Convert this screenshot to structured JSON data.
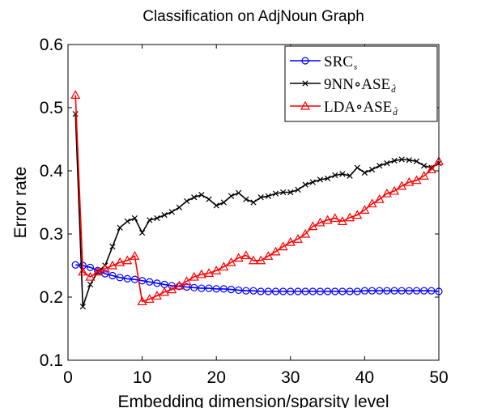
{
  "chart_data": {
    "type": "line",
    "title": "Classification on AdjNoun Graph",
    "xlabel": "Embedding dimension/sparsity level",
    "ylabel": "Error rate",
    "xlim": [
      0,
      50
    ],
    "ylim": [
      0.1,
      0.6
    ],
    "xticks": [
      0,
      10,
      20,
      30,
      40,
      50
    ],
    "xtick_labels": [
      "0",
      "10",
      "20",
      "30",
      "40",
      "50"
    ],
    "yticks": [
      0.1,
      0.2,
      0.3,
      0.4,
      0.5,
      0.6
    ],
    "ytick_labels": [
      "0.1",
      "0.2",
      "0.3",
      "0.4",
      "0.5",
      "0.6"
    ],
    "grid": false,
    "legend_position": "top-right",
    "series": [
      {
        "name": "SRC",
        "name_sub": "s",
        "color": "#0000ff",
        "marker": "circle",
        "x": [
          1,
          2,
          3,
          4,
          5,
          6,
          7,
          8,
          9,
          10,
          11,
          12,
          13,
          14,
          15,
          16,
          17,
          18,
          19,
          20,
          21,
          22,
          23,
          24,
          25,
          26,
          27,
          28,
          29,
          30,
          31,
          32,
          33,
          34,
          35,
          36,
          37,
          38,
          39,
          40,
          41,
          42,
          43,
          44,
          45,
          46,
          47,
          48,
          49,
          50
        ],
        "y": [
          0.251,
          0.25,
          0.247,
          0.242,
          0.237,
          0.234,
          0.231,
          0.229,
          0.228,
          0.226,
          0.224,
          0.222,
          0.22,
          0.218,
          0.217,
          0.216,
          0.215,
          0.214,
          0.214,
          0.213,
          0.213,
          0.212,
          0.211,
          0.21,
          0.21,
          0.209,
          0.209,
          0.209,
          0.209,
          0.209,
          0.209,
          0.209,
          0.209,
          0.209,
          0.209,
          0.209,
          0.209,
          0.209,
          0.209,
          0.21,
          0.21,
          0.21,
          0.21,
          0.21,
          0.21,
          0.21,
          0.21,
          0.21,
          0.21,
          0.209
        ]
      },
      {
        "name": "9NN∘ASE",
        "name_sub": "d̂",
        "color": "#000000",
        "marker": "x",
        "x": [
          1,
          2,
          3,
          4,
          5,
          6,
          7,
          8,
          9,
          10,
          11,
          12,
          13,
          14,
          15,
          16,
          17,
          18,
          19,
          20,
          21,
          22,
          23,
          24,
          25,
          26,
          27,
          28,
          29,
          30,
          31,
          32,
          33,
          34,
          35,
          36,
          37,
          38,
          39,
          40,
          41,
          42,
          43,
          44,
          45,
          46,
          47,
          48,
          49,
          50
        ],
        "y": [
          0.49,
          0.185,
          0.22,
          0.24,
          0.25,
          0.28,
          0.31,
          0.32,
          0.325,
          0.302,
          0.322,
          0.325,
          0.33,
          0.335,
          0.342,
          0.352,
          0.358,
          0.362,
          0.355,
          0.345,
          0.35,
          0.36,
          0.365,
          0.355,
          0.35,
          0.358,
          0.36,
          0.364,
          0.366,
          0.366,
          0.37,
          0.378,
          0.382,
          0.386,
          0.388,
          0.393,
          0.395,
          0.392,
          0.405,
          0.397,
          0.402,
          0.408,
          0.412,
          0.416,
          0.418,
          0.417,
          0.415,
          0.408,
          0.405,
          0.412
        ]
      },
      {
        "name": "LDA∘ASE",
        "name_sub": "d̂",
        "color": "#ff0000",
        "marker": "triangle",
        "x": [
          1,
          2,
          3,
          4,
          5,
          6,
          7,
          8,
          9,
          10,
          11,
          12,
          13,
          14,
          15,
          16,
          17,
          18,
          19,
          20,
          21,
          22,
          23,
          24,
          25,
          26,
          27,
          28,
          29,
          30,
          31,
          32,
          33,
          34,
          35,
          36,
          37,
          38,
          39,
          40,
          41,
          42,
          43,
          44,
          45,
          46,
          47,
          48,
          49,
          50
        ],
        "y": [
          0.52,
          0.24,
          0.232,
          0.24,
          0.245,
          0.25,
          0.255,
          0.258,
          0.265,
          0.193,
          0.197,
          0.202,
          0.208,
          0.212,
          0.218,
          0.225,
          0.232,
          0.236,
          0.238,
          0.242,
          0.248,
          0.255,
          0.262,
          0.266,
          0.258,
          0.258,
          0.265,
          0.272,
          0.28,
          0.287,
          0.292,
          0.3,
          0.312,
          0.318,
          0.322,
          0.325,
          0.32,
          0.326,
          0.33,
          0.338,
          0.348,
          0.355,
          0.364,
          0.368,
          0.376,
          0.382,
          0.385,
          0.392,
          0.402,
          0.415
        ]
      }
    ]
  }
}
